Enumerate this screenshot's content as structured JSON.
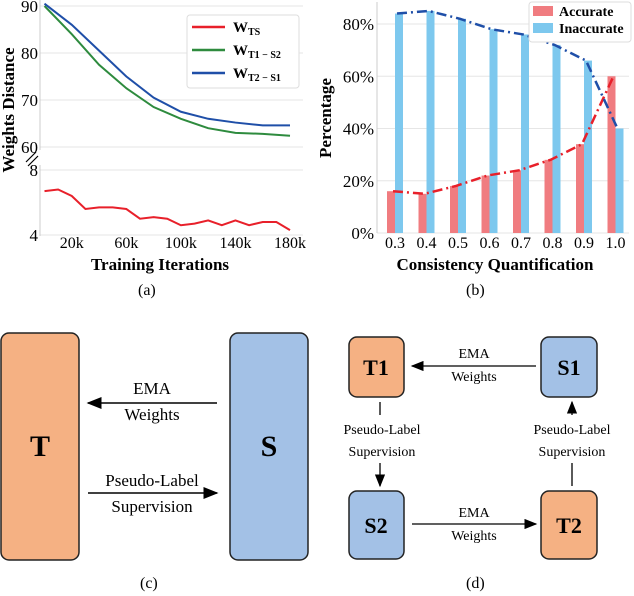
{
  "panels": {
    "a": "(a)",
    "b": "(b)",
    "c": "(c)",
    "d": "(d)"
  },
  "chart_data": [
    {
      "type": "line",
      "xlabel": "Training Iterations",
      "ylabel": "Weights Distance",
      "x_ticks": [
        "20k",
        "60k",
        "100k",
        "140k",
        "180k"
      ],
      "x_tick_values": [
        20000,
        60000,
        100000,
        140000,
        180000
      ],
      "y_ticks_upper": [
        60,
        70,
        80,
        90
      ],
      "y_ticks_lower": [
        4,
        8
      ],
      "ylim_upper": [
        60,
        90
      ],
      "ylim_lower": [
        4,
        8
      ],
      "broken_y_axis": true,
      "grid": true,
      "legend": "top-right",
      "series": [
        {
          "name": "W",
          "sub": "TS",
          "color": "#e8202a",
          "axis": "lower",
          "x": [
            0,
            10000,
            20000,
            30000,
            40000,
            50000,
            60000,
            70000,
            80000,
            90000,
            100000,
            110000,
            120000,
            130000,
            140000,
            150000,
            160000,
            170000,
            180000
          ],
          "y": [
            6.7,
            6.8,
            6.4,
            5.6,
            5.7,
            5.7,
            5.6,
            5.0,
            5.1,
            5.0,
            4.6,
            4.7,
            4.9,
            4.6,
            4.9,
            4.6,
            4.8,
            4.8,
            4.3
          ]
        },
        {
          "name": "W",
          "sub": "T1 − S2",
          "color": "#2e8b3e",
          "axis": "upper",
          "x": [
            0,
            20000,
            40000,
            60000,
            80000,
            100000,
            120000,
            140000,
            160000,
            180000
          ],
          "y": [
            90,
            84,
            77.5,
            72.5,
            68.5,
            66,
            64,
            63,
            62.8,
            62.4
          ]
        },
        {
          "name": "W",
          "sub": "T2 − S1",
          "color": "#1f4fa8",
          "axis": "upper",
          "x": [
            0,
            20000,
            40000,
            60000,
            80000,
            100000,
            120000,
            140000,
            160000,
            180000
          ],
          "y": [
            90.5,
            86,
            80.5,
            75,
            70.5,
            67.5,
            66,
            65.2,
            64.6,
            64.6
          ]
        }
      ]
    },
    {
      "type": "bar",
      "xlabel": "Consistency Quantification",
      "ylabel": "Percentage",
      "categories": [
        "0.3",
        "0.4",
        "0.5",
        "0.6",
        "0.7",
        "0.8",
        "0.9",
        "1.0"
      ],
      "y_ticks": [
        "0%",
        "20%",
        "40%",
        "60%",
        "80%"
      ],
      "ylim": [
        0,
        88
      ],
      "grid": true,
      "legend": "top-right",
      "series": [
        {
          "name": "Accurate",
          "color": "#f07c80",
          "line_color": "#e8202a",
          "values": [
            16,
            15,
            18,
            22,
            24,
            28,
            34,
            60
          ]
        },
        {
          "name": "Inaccurate",
          "color": "#7dc8ee",
          "line_color": "#1f4fa8",
          "values": [
            84,
            85,
            82,
            78,
            76,
            72,
            66,
            40
          ]
        }
      ]
    }
  ],
  "diagram_c": {
    "teacher": "T",
    "student": "S",
    "ema_label": [
      "EMA",
      "Weights"
    ],
    "pseudo_label": [
      "Pseudo-Label",
      "Supervision"
    ],
    "teacher_color": "#f5b183",
    "student_color": "#a3c1e6"
  },
  "diagram_d": {
    "t1": "T1",
    "s1": "S1",
    "s2": "S2",
    "t2": "T2",
    "ema_label": [
      "EMA",
      "Weights"
    ],
    "pseudo_label": [
      "Pseudo-Label",
      "Supervision"
    ]
  }
}
